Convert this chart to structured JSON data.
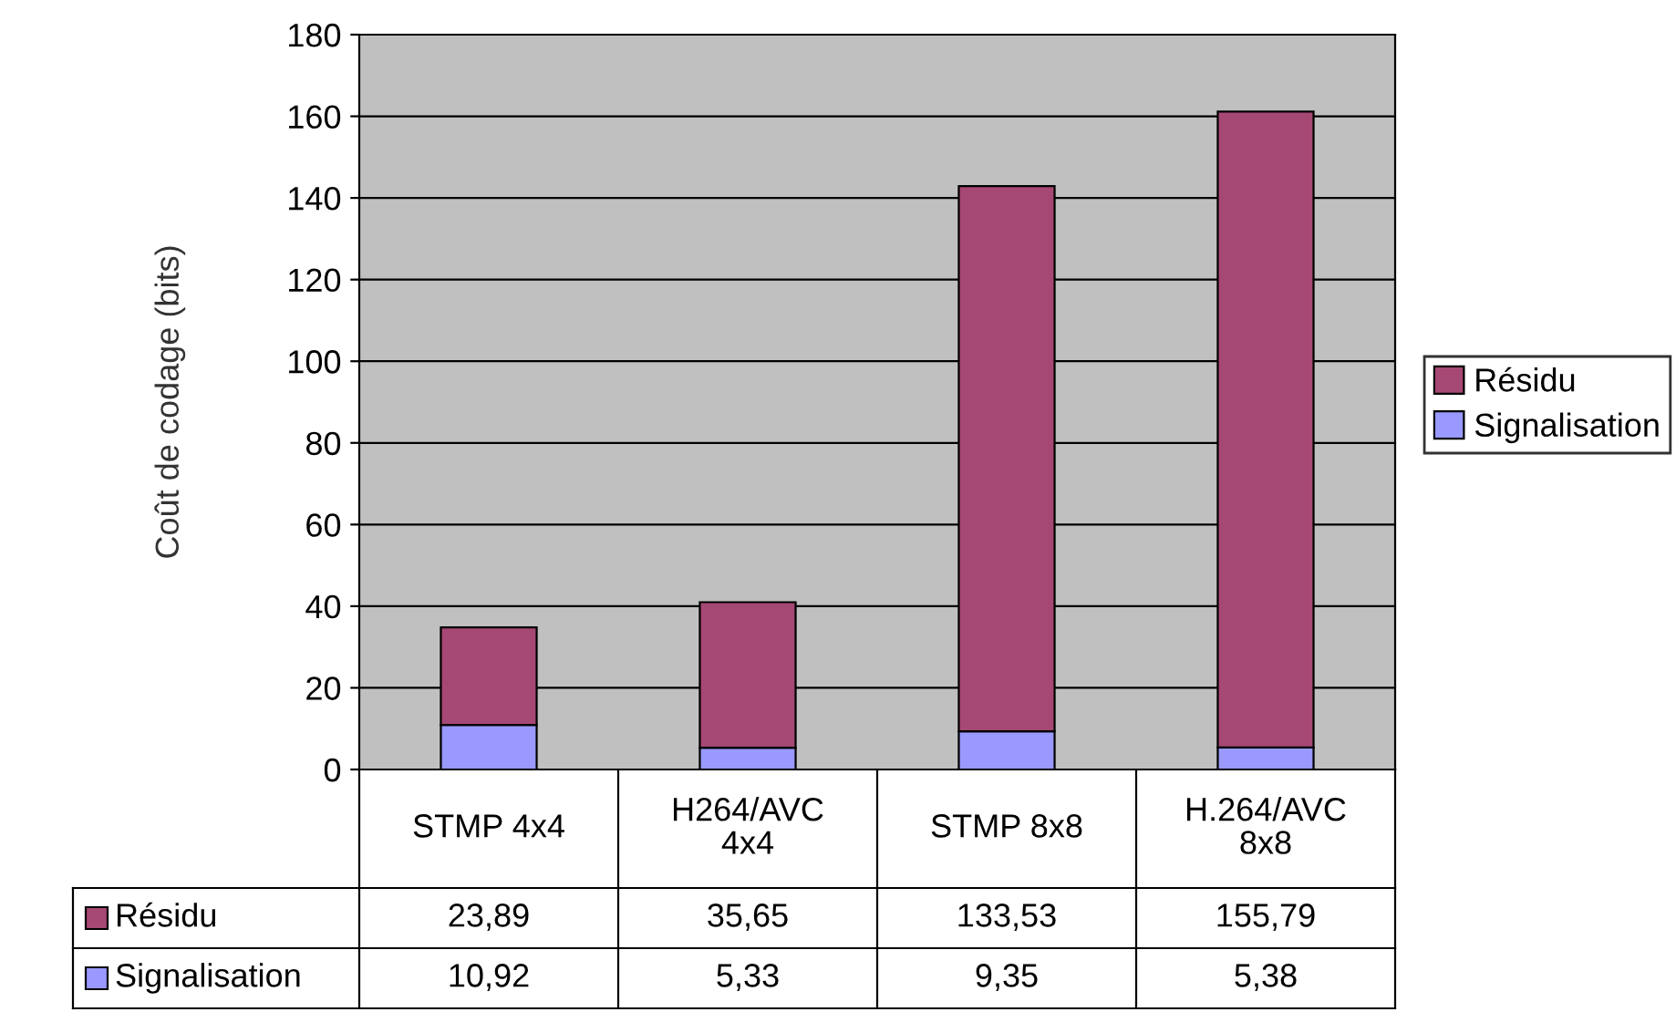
{
  "chart_data": {
    "type": "bar",
    "stacked": true,
    "ylabel": "Coût de codage (bits)",
    "categories": [
      "STMP 4x4",
      "H264/AVC\n4x4",
      "STMP 8x8",
      "H.264/AVC\n8x8"
    ],
    "series": [
      {
        "name": "Signalisation",
        "color": "#9999ff",
        "values": [
          10.92,
          5.33,
          9.35,
          5.38
        ],
        "value_labels": [
          "10,92",
          "5,33",
          "9,35",
          "5,38"
        ]
      },
      {
        "name": "Résidu",
        "color": "#a64874",
        "values": [
          23.89,
          35.65,
          133.53,
          155.79
        ],
        "value_labels": [
          "23,89",
          "35,65",
          "133,53",
          "155,79"
        ]
      }
    ],
    "ylim": [
      0,
      180
    ],
    "yticks": [
      0,
      20,
      40,
      60,
      80,
      100,
      120,
      140,
      160,
      180
    ],
    "grid": "y",
    "legend": "right"
  }
}
